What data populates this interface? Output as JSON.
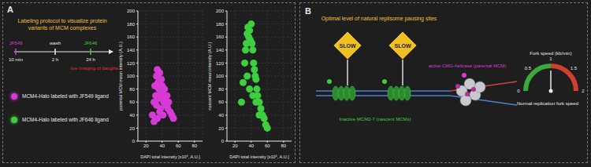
{
  "panel_labels": [
    "A",
    "B"
  ],
  "protocol": {
    "title": "Labeling protocol to visualize protein variants of MCM complexes",
    "top": [
      "JF549",
      "wash",
      "JF646"
    ],
    "bottom": [
      "10 min",
      "2 h",
      "24 h"
    ],
    "imaging": "live imaging of daughter cells"
  },
  "legend": [
    {
      "text": "MCM4-Halo labeled with JF549 ligand",
      "color": "#d63bd6"
    },
    {
      "text": "MCM4-Halo labeled with JF646 ligand",
      "color": "#3ecf3e"
    }
  ],
  "chart_data": [
    {
      "type": "scatter",
      "x_label": "DAPI total intensity [x10⁶, A.U.]",
      "y_label": "parental MCM mean intensity (A.U.)",
      "color": "#d63bd6",
      "x": [
        28,
        30,
        31,
        32,
        33,
        33,
        34,
        35,
        35,
        36,
        37,
        38,
        38,
        39,
        40,
        41,
        42,
        43,
        44,
        45,
        46,
        47,
        48,
        50,
        52,
        54,
        30,
        34,
        37,
        41
      ],
      "values": [
        40,
        60,
        85,
        70,
        100,
        55,
        110,
        90,
        65,
        80,
        105,
        75,
        50,
        95,
        85,
        70,
        60,
        80,
        65,
        55,
        70,
        50,
        60,
        45,
        40,
        35,
        30,
        35,
        45,
        40
      ],
      "xlim": [
        10,
        90
      ],
      "xticks": [
        20,
        40,
        60,
        80
      ],
      "ylim": [
        0,
        200
      ],
      "yticks": [
        0,
        20,
        40,
        60,
        80,
        100,
        120,
        140,
        160,
        180,
        200
      ]
    },
    {
      "type": "scatter",
      "x_label": "DAPI total intensity [x10⁶, A.U.]",
      "y_label": "nascent MCM mean intensity (A.U.)",
      "color": "#3ecf3e",
      "x": [
        28,
        30,
        32,
        33,
        34,
        35,
        36,
        37,
        38,
        39,
        40,
        41,
        42,
        43,
        44,
        45,
        46,
        47,
        48,
        50,
        52,
        54,
        56,
        58,
        60,
        35,
        38,
        42,
        46,
        50
      ],
      "values": [
        60,
        90,
        120,
        140,
        150,
        165,
        175,
        160,
        170,
        155,
        180,
        150,
        140,
        120,
        110,
        100,
        95,
        80,
        70,
        60,
        50,
        40,
        35,
        25,
        20,
        100,
        80,
        70,
        60,
        40
      ],
      "xlim": [
        10,
        90
      ],
      "xticks": [
        20,
        40,
        60,
        80
      ],
      "ylim": [
        0,
        200
      ],
      "yticks": [
        0,
        20,
        40,
        60,
        80,
        100,
        120,
        140,
        160,
        180,
        200
      ]
    }
  ],
  "panel_b": {
    "title": "Optimal level of natural replisome pausing sites",
    "signs": [
      "SLOW",
      "SLOW"
    ],
    "inactive": "Inactive MCM2-7 (nascent MCMs)",
    "active": "active CMG-helicase (parental MCM)",
    "gauge": {
      "title": "Fork speed (kb/min)",
      "min": 0,
      "max": 2,
      "ticks": [
        0,
        0.5,
        1,
        1.5,
        2
      ],
      "value": 1,
      "caption": "Normal replication fork speed"
    }
  }
}
